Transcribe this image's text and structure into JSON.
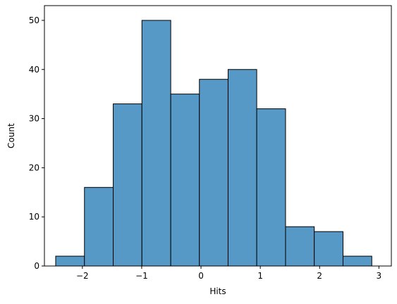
{
  "chart_data": {
    "type": "histogram",
    "x_label": "Hits",
    "y_label": "Count",
    "bins": [
      -2.45,
      -1.965,
      -1.48,
      -0.996,
      -0.51,
      -0.027,
      0.457,
      0.94,
      1.426,
      1.91,
      2.395,
      2.88
    ],
    "values": [
      2,
      16,
      33,
      50,
      35,
      38,
      40,
      32,
      8,
      7,
      2
    ],
    "color": "#5799c6",
    "xlim": [
      -2.64,
      3.21
    ],
    "xticks": [
      {
        "value": -2,
        "label": "−2"
      },
      {
        "value": -1,
        "label": "−1"
      },
      0,
      1,
      2,
      3
    ],
    "ylim": [
      0,
      53
    ],
    "yticks": [
      0,
      10,
      20,
      30,
      40,
      50
    ]
  }
}
